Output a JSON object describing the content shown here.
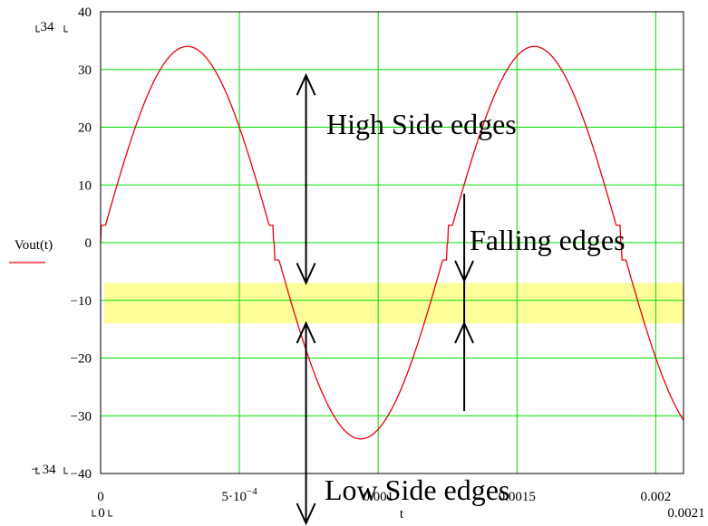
{
  "chart_data": {
    "type": "line",
    "xlabel": "t",
    "ylabel": "Vout(t)",
    "xlim": [
      0,
      0.0021
    ],
    "ylim": [
      -40,
      40
    ],
    "grid": true,
    "x_ticks": [
      {
        "value": 0,
        "label": "0"
      },
      {
        "value": 0.0005,
        "label": "5·10",
        "exp": "−4"
      },
      {
        "value": 0.001,
        "label": "0.001"
      },
      {
        "value": 0.0015,
        "label": "0.0015"
      },
      {
        "value": 0.002,
        "label": "0.002"
      }
    ],
    "y_ticks": [
      40,
      30,
      20,
      10,
      0,
      -10,
      -20,
      -30,
      -40
    ],
    "y_tick_labels": [
      "40",
      "30",
      "20",
      "10",
      "0",
      "−10",
      "−20",
      "−30",
      "−40"
    ],
    "corner_labels": {
      "y_max": "34",
      "y_min": "− 34",
      "x_min": "0",
      "x_max": "0.0021"
    },
    "series": [
      {
        "name": "Vout(t)",
        "color": "#e8000b",
        "model": "34*sin(2*pi*800*t) with flat steps near +/-3 V",
        "peak": 34,
        "frequency_hz": 800,
        "step_level": 3
      }
    ],
    "band": {
      "from": -14,
      "to": -7,
      "color": "#ffff99"
    },
    "annotations": [
      {
        "text": "High Side edges",
        "x": 0.00077,
        "y": 22,
        "arrow": {
          "x": 0.00074,
          "from": 29,
          "to": -7
        }
      },
      {
        "text": "Falling edges",
        "x": 0.00132,
        "y": 0,
        "arrow": {
          "x": 0.00131,
          "from": 8,
          "to": -29,
          "mid": -10.5
        }
      },
      {
        "text": "Low Side edges",
        "x": 0.00077,
        "y": -42,
        "arrow": {
          "x": 0.00074,
          "from": -14,
          "to": -47
        }
      }
    ]
  }
}
